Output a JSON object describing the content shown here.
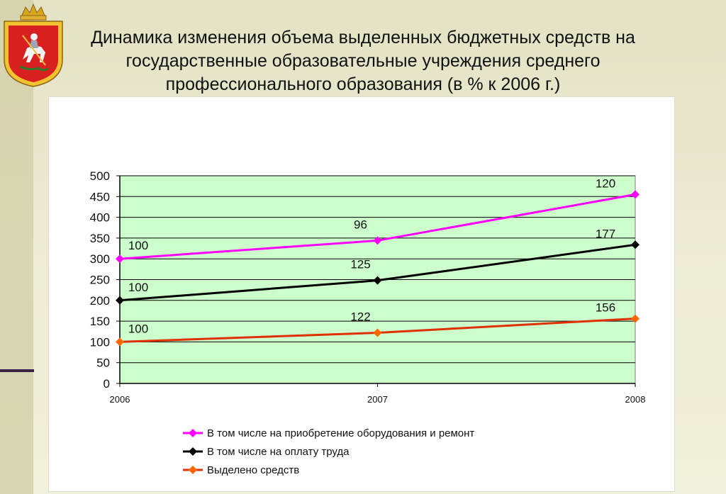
{
  "title_lines": [
    "Динамика изменения объема выделенных бюджетных средств на",
    "государственные образовательные учреждения среднего",
    "профессионального образования (в % к 2006 г.)"
  ],
  "logo": {
    "name": "moscow-oblast-coat-of-arms"
  },
  "chart_data": {
    "type": "line",
    "categories": [
      "2006",
      "2007",
      "2008"
    ],
    "ylim": [
      0,
      500
    ],
    "yticks": [
      0,
      50,
      100,
      150,
      200,
      250,
      300,
      350,
      400,
      450,
      500
    ],
    "grid": true,
    "legend_position": "bottom",
    "plot_background": "#ccffcc",
    "series": [
      {
        "name": "В том числе на приобретение оборудования и ремонт",
        "values": [
          300,
          344,
          455
        ],
        "labels": [
          "100",
          "96",
          "120"
        ],
        "color": "#ff00ff",
        "marker": "diamond"
      },
      {
        "name": "В том числе на оплату труда",
        "values": [
          200,
          248,
          334
        ],
        "labels": [
          "100",
          "125",
          "177"
        ],
        "color": "#000000",
        "marker": "diamond"
      },
      {
        "name": "Выделено средств",
        "values": [
          100,
          122,
          156
        ],
        "labels": [
          "100",
          "122",
          "156"
        ],
        "color": "#e03000",
        "marker": "diamond",
        "marker_color": "#ff6600"
      }
    ]
  }
}
